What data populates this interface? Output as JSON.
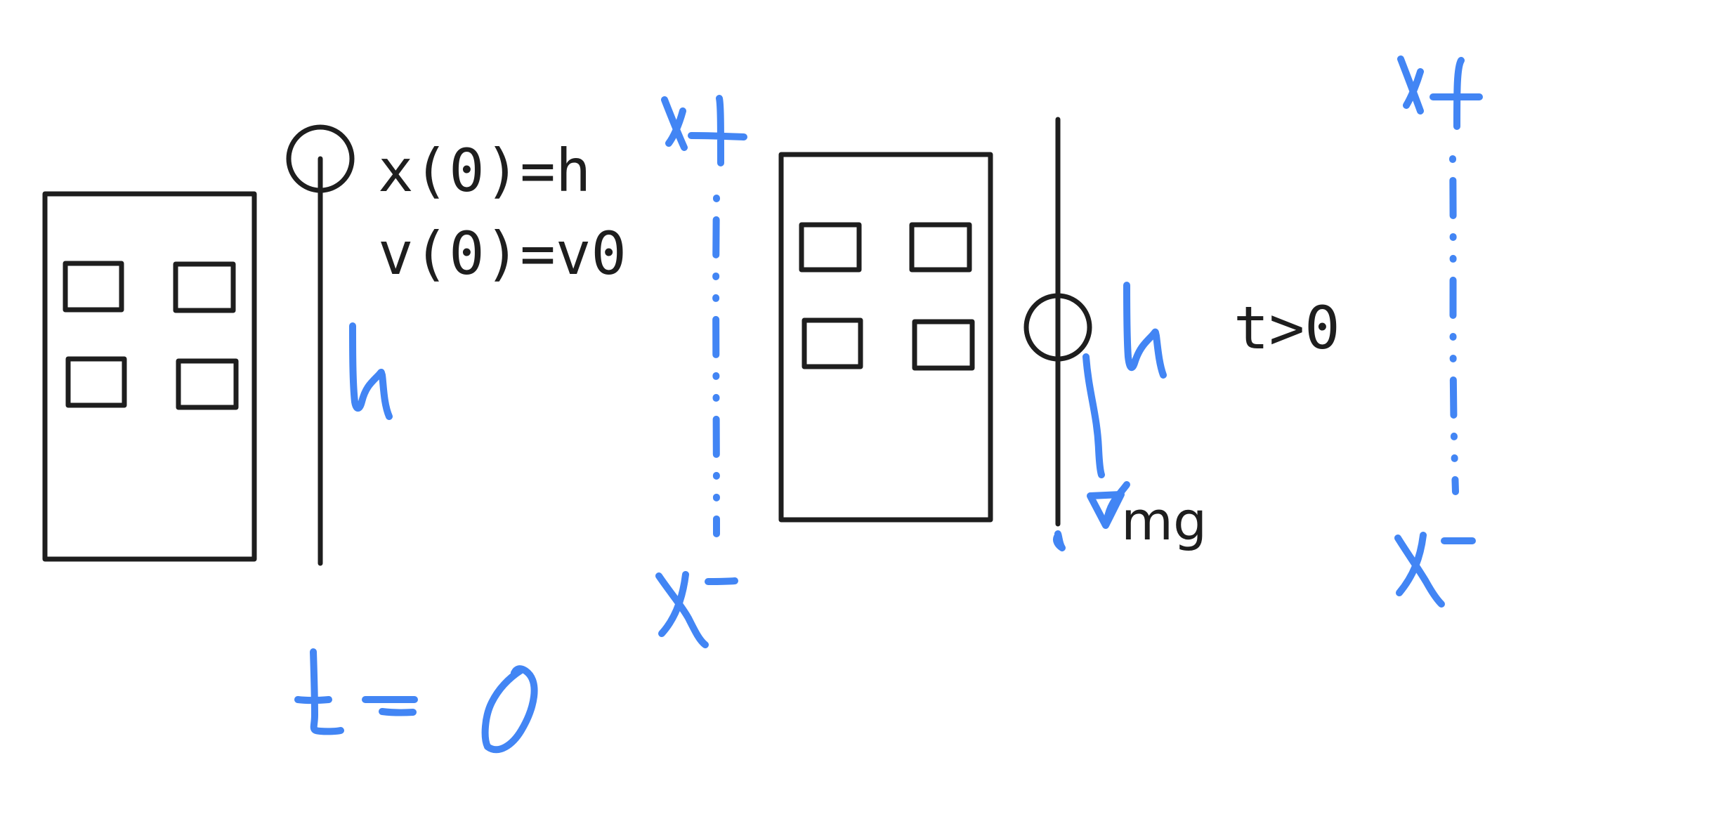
{
  "colors": {
    "ink": "#1e1e1e",
    "pen": "#4285f4",
    "background": "#ffffff"
  },
  "text": {
    "initial_position": "x(0)=h",
    "initial_velocity": "v(0)=v0",
    "time_later": "t>0",
    "weight": "mg"
  },
  "handwriting": {
    "height_left": "h",
    "height_right": "h",
    "time_zero": "t=0",
    "x_plus_left": "x+",
    "x_minus_left": "x-",
    "x_plus_right": "x+",
    "x_minus_right": "x-"
  }
}
